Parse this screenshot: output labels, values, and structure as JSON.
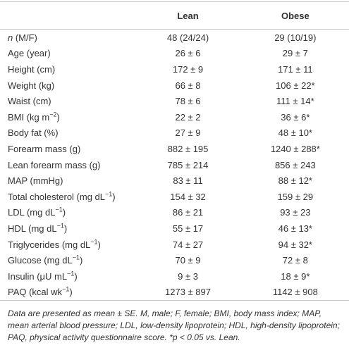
{
  "table": {
    "columns": [
      "",
      "Lean",
      "Obese"
    ],
    "rows": [
      {
        "label": [
          {
            "text": "n",
            "style": "italic"
          },
          {
            "text": " (M/F)"
          }
        ],
        "cells": [
          "48 (24/24)",
          "29 (10/19)"
        ]
      },
      {
        "label": [
          {
            "text": "Age (year)"
          }
        ],
        "cells": [
          "26 ± 6",
          "29 ± 7"
        ]
      },
      {
        "label": [
          {
            "text": "Height (cm)"
          }
        ],
        "cells": [
          "172 ± 9",
          "171 ± 11"
        ]
      },
      {
        "label": [
          {
            "text": "Weight (kg)"
          }
        ],
        "cells": [
          "66 ± 8",
          "106 ± 22*"
        ]
      },
      {
        "label": [
          {
            "text": "Waist (cm)"
          }
        ],
        "cells": [
          "78 ± 6",
          "111 ± 14*"
        ]
      },
      {
        "label": [
          {
            "text": "BMI (kg m"
          },
          {
            "text": "−2",
            "style": "sup"
          },
          {
            "text": ")"
          }
        ],
        "cells": [
          "22 ± 2",
          "36 ± 6*"
        ]
      },
      {
        "label": [
          {
            "text": "Body fat (%)"
          }
        ],
        "cells": [
          "27 ± 9",
          "48 ± 10*"
        ]
      },
      {
        "label": [
          {
            "text": "Forearm mass (g)"
          }
        ],
        "cells": [
          "882 ± 195",
          "1240 ± 288*"
        ]
      },
      {
        "label": [
          {
            "text": "Lean forearm mass (g)"
          }
        ],
        "cells": [
          "785 ± 214",
          "856 ± 243"
        ]
      },
      {
        "label": [
          {
            "text": "MAP (mmHg)"
          }
        ],
        "cells": [
          "83 ± 11",
          "88 ± 12*"
        ]
      },
      {
        "label": [
          {
            "text": "Total cholesterol (mg dL"
          },
          {
            "text": "−1",
            "style": "sup"
          },
          {
            "text": ")"
          }
        ],
        "cells": [
          "154 ± 32",
          "159 ± 29"
        ]
      },
      {
        "label": [
          {
            "text": "LDL (mg dL"
          },
          {
            "text": "−1",
            "style": "sup"
          },
          {
            "text": ")"
          }
        ],
        "cells": [
          "86 ± 21",
          "93 ± 23"
        ]
      },
      {
        "label": [
          {
            "text": "HDL (mg dL"
          },
          {
            "text": "−1",
            "style": "sup"
          },
          {
            "text": ")"
          }
        ],
        "cells": [
          "55 ± 17",
          "46 ± 13*"
        ]
      },
      {
        "label": [
          {
            "text": "Triglycerides (mg dL"
          },
          {
            "text": "−1",
            "style": "sup"
          },
          {
            "text": ")"
          }
        ],
        "cells": [
          "74 ± 27",
          "94 ± 32*"
        ]
      },
      {
        "label": [
          {
            "text": "Glucose (mg dL"
          },
          {
            "text": "−1",
            "style": "sup"
          },
          {
            "text": ")"
          }
        ],
        "cells": [
          "70 ± 9",
          "72 ± 8"
        ]
      },
      {
        "label": [
          {
            "text": "Insulin (μU mL"
          },
          {
            "text": "−1",
            "style": "sup"
          },
          {
            "text": ")"
          }
        ],
        "cells": [
          "9 ± 3",
          "18 ± 9*"
        ]
      },
      {
        "label": [
          {
            "text": "PAQ (kcal wk"
          },
          {
            "text": "−1",
            "style": "sup"
          },
          {
            "text": ")"
          }
        ],
        "cells": [
          "1273 ± 897",
          "1142 ± 908"
        ]
      }
    ],
    "footnote": "Data are presented as mean ± SE. M, male; F, female; BMI, body mass index; MAP, mean arterial blood pressure; LDL, low-density lipoprotein; HDL, high-density lipoprotein; PAQ, physical activity questionnaire score. *p < 0.05 vs. Lean."
  }
}
